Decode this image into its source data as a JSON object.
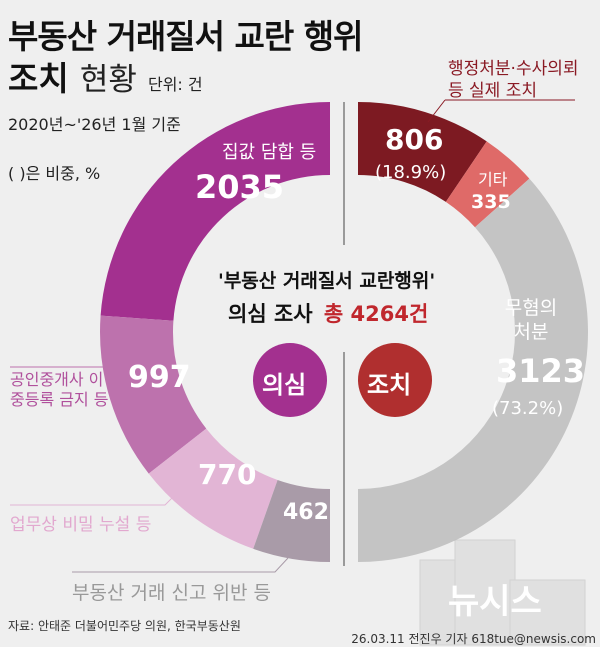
{
  "title_line1": "부동산 거래질서 교란 행위",
  "title_line2_bold": "조치",
  "title_line2_light": "현황",
  "unit": "단위: 건",
  "period": "2020년~'26년 1월 기준",
  "paren_note": "( )은 비중, %",
  "center_line1": "'부동산 거래질서 교란행위'",
  "center_line2": "의심 조사",
  "center_total": "총 4264건",
  "badge_left": "의심",
  "badge_right": "조치",
  "right_callout_line1": "행정처분·수사의뢰",
  "right_callout_line2": "등 실제 조치",
  "source": "자료: 안태준 더불어민주당 의원, 한국부동산원",
  "credit": "26.03.11 전진우 기자 618tue@newsis.com",
  "watermark": "뉴시스",
  "colors": {
    "left_badge": "#a3308f",
    "right_badge": "#b02f2f",
    "total": "#c0272d",
    "callout": "#8a1a24"
  },
  "chart_data": [
    {
      "type": "pie",
      "style": "half-donut-left",
      "label": "의심",
      "total": 4264,
      "slices": [
        {
          "label": "집값 담합 등",
          "value": 2035,
          "color": "#a3308f"
        },
        {
          "label": "공인중개사 이중등록 금지 등",
          "value": 997,
          "color": "#bd72ad"
        },
        {
          "label": "업무상 비밀 누설 등",
          "value": 770,
          "color": "#e2b5d5"
        },
        {
          "label": "부동산 거래 신고 위반 등",
          "value": 462,
          "color": "#a99ba8"
        }
      ]
    },
    {
      "type": "pie",
      "style": "half-donut-right",
      "label": "조치",
      "slices": [
        {
          "label": "행정처분·수사의뢰 등 실제 조치",
          "value": 806,
          "percent": "(18.9%)",
          "color": "#7d1a22"
        },
        {
          "label": "기타",
          "value": 335,
          "color": "#df6a68"
        },
        {
          "label": "무혐의 처분",
          "value": 3123,
          "percent": "(73.2%)",
          "color": "#c4c4c4"
        }
      ]
    }
  ]
}
